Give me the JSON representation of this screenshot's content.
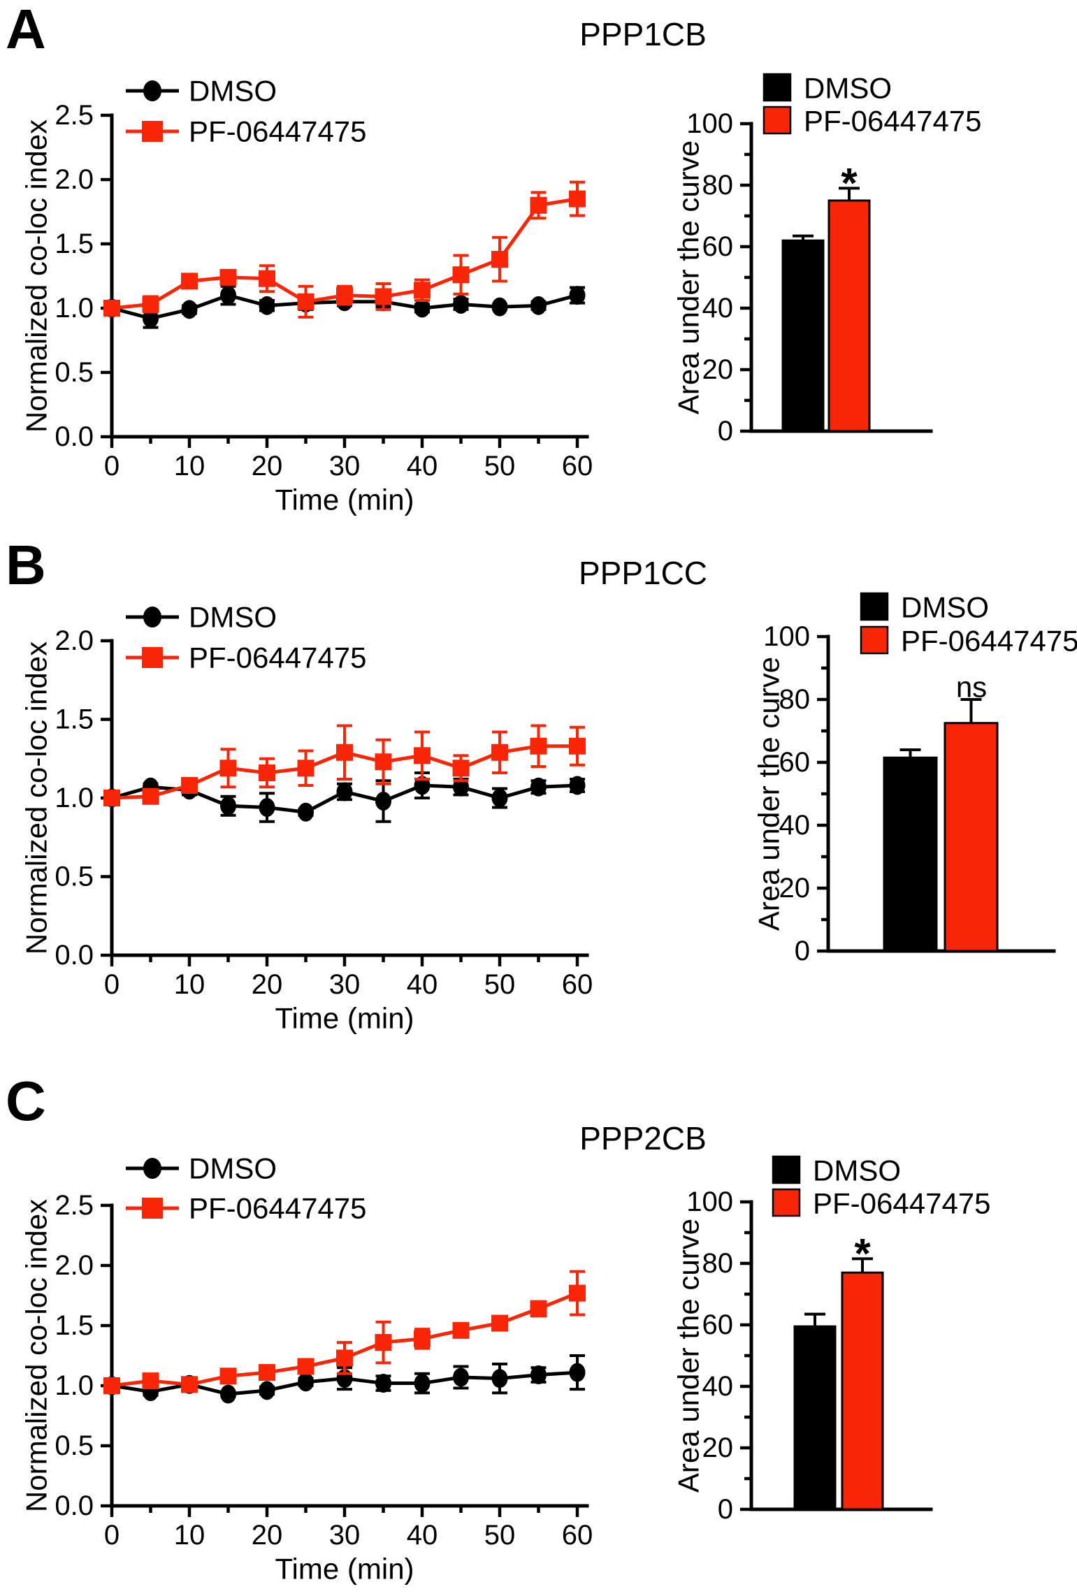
{
  "figure_background": "#FFFFFF",
  "colors": {
    "dmso": "#000000",
    "pf": "#F82506",
    "text": "#000000"
  },
  "chart_data": [
    {
      "panel": "A",
      "title": "PPP1CB",
      "line": {
        "type": "line",
        "xlabel": "Time (min)",
        "ylabel": "Normalized co-loc index",
        "x": [
          0,
          5,
          10,
          15,
          20,
          25,
          30,
          35,
          40,
          45,
          50,
          55,
          60
        ],
        "xticks": [
          0,
          10,
          20,
          30,
          40,
          50,
          60
        ],
        "ylim": [
          0,
          2.5
        ],
        "yticks": [
          0,
          0.5,
          1.0,
          1.5,
          2.0,
          2.5
        ],
        "grid": false,
        "legend_position": "top-left-inside",
        "series": [
          {
            "name": "DMSO",
            "color": "#000000",
            "marker": "circle",
            "values": [
              1.0,
              0.92,
              0.99,
              1.1,
              1.02,
              1.04,
              1.05,
              1.05,
              1.0,
              1.03,
              1.01,
              1.02,
              1.1
            ],
            "errors": [
              0.04,
              0.07,
              0.03,
              0.07,
              0.04,
              0.05,
              0.03,
              0.04,
              0.03,
              0.04,
              0.02,
              0.03,
              0.06
            ]
          },
          {
            "name": "PF-06447475",
            "color": "#F82506",
            "marker": "square",
            "values": [
              1.0,
              1.03,
              1.21,
              1.24,
              1.23,
              1.05,
              1.1,
              1.09,
              1.14,
              1.26,
              1.38,
              1.8,
              1.85
            ],
            "errors": [
              0.03,
              0.06,
              0.04,
              0.04,
              0.1,
              0.12,
              0.07,
              0.1,
              0.08,
              0.15,
              0.17,
              0.1,
              0.13
            ]
          }
        ]
      },
      "bar": {
        "type": "bar",
        "ylabel": "Area under the curve",
        "ylim": [
          0,
          100
        ],
        "yticks": [
          0,
          20,
          40,
          60,
          80,
          100
        ],
        "categories": [
          "DMSO",
          "PF-06447475"
        ],
        "values": [
          62,
          75
        ],
        "errors": [
          1.5,
          4
        ],
        "colors": [
          "#000000",
          "#F82506"
        ],
        "significance": "*",
        "significance_on": "PF-06447475"
      }
    },
    {
      "panel": "B",
      "title": "PPP1CC",
      "line": {
        "type": "line",
        "xlabel": "Time (min)",
        "ylabel": "Normalized co-loc index",
        "x": [
          0,
          5,
          10,
          15,
          20,
          25,
          30,
          35,
          40,
          45,
          50,
          55,
          60
        ],
        "xticks": [
          0,
          10,
          20,
          30,
          40,
          50,
          60
        ],
        "ylim": [
          0,
          2.0
        ],
        "yticks": [
          0,
          0.5,
          1.0,
          1.5,
          2.0
        ],
        "grid": false,
        "legend_position": "top-left-inside",
        "series": [
          {
            "name": "DMSO",
            "color": "#000000",
            "marker": "circle",
            "values": [
              1.0,
              1.07,
              1.05,
              0.95,
              0.94,
              0.91,
              1.04,
              0.98,
              1.08,
              1.07,
              1.0,
              1.07,
              1.08
            ],
            "errors": [
              0.02,
              0.02,
              0.03,
              0.06,
              0.09,
              0.02,
              0.05,
              0.13,
              0.08,
              0.05,
              0.06,
              0.04,
              0.04
            ]
          },
          {
            "name": "PF-06447475",
            "color": "#F82506",
            "marker": "square",
            "values": [
              1.0,
              1.01,
              1.08,
              1.19,
              1.16,
              1.19,
              1.29,
              1.23,
              1.27,
              1.19,
              1.29,
              1.33,
              1.33
            ],
            "errors": [
              0.02,
              0.03,
              0.02,
              0.12,
              0.09,
              0.11,
              0.17,
              0.14,
              0.15,
              0.08,
              0.13,
              0.13,
              0.12
            ]
          }
        ]
      },
      "bar": {
        "type": "bar",
        "ylabel": "Area under the curve",
        "ylim": [
          0,
          100
        ],
        "yticks": [
          0,
          20,
          40,
          60,
          80,
          100
        ],
        "categories": [
          "DMSO",
          "PF-06447475"
        ],
        "values": [
          61.5,
          72.5
        ],
        "errors": [
          2.5,
          7.5
        ],
        "colors": [
          "#000000",
          "#F82506"
        ],
        "significance": "ns",
        "significance_on": "PF-06447475"
      }
    },
    {
      "panel": "C",
      "title": "PPP2CB",
      "line": {
        "type": "line",
        "xlabel": "Time (min)",
        "ylabel": "Normalized co-loc index",
        "x": [
          0,
          5,
          10,
          15,
          20,
          25,
          30,
          35,
          40,
          45,
          50,
          55,
          60
        ],
        "xticks": [
          0,
          10,
          20,
          30,
          40,
          50,
          60
        ],
        "ylim": [
          0,
          2.5
        ],
        "yticks": [
          0,
          0.5,
          1.0,
          1.5,
          2.0,
          2.5
        ],
        "grid": false,
        "legend_position": "top-left-inside",
        "series": [
          {
            "name": "DMSO",
            "color": "#000000",
            "marker": "circle",
            "values": [
              1.0,
              0.95,
              1.01,
              0.93,
              0.96,
              1.03,
              1.06,
              1.02,
              1.02,
              1.07,
              1.06,
              1.09,
              1.11
            ],
            "errors": [
              0.02,
              0.03,
              0.02,
              0.02,
              0.03,
              0.03,
              0.09,
              0.06,
              0.08,
              0.09,
              0.12,
              0.06,
              0.14
            ]
          },
          {
            "name": "PF-06447475",
            "color": "#F82506",
            "marker": "square",
            "values": [
              1.0,
              1.04,
              1.01,
              1.08,
              1.11,
              1.16,
              1.23,
              1.36,
              1.39,
              1.46,
              1.52,
              1.64,
              1.77
            ],
            "errors": [
              0.02,
              0.03,
              0.03,
              0.03,
              0.03,
              0.04,
              0.13,
              0.17,
              0.08,
              0.05,
              0.04,
              0.06,
              0.18
            ]
          }
        ]
      },
      "bar": {
        "type": "bar",
        "ylabel": "Area under the curve",
        "ylim": [
          0,
          100
        ],
        "yticks": [
          0,
          20,
          40,
          60,
          80,
          100
        ],
        "categories": [
          "DMSO",
          "PF-06447475"
        ],
        "values": [
          59.5,
          77
        ],
        "errors": [
          4,
          4.5
        ],
        "colors": [
          "#000000",
          "#F82506"
        ],
        "significance": "*",
        "significance_on": "PF-06447475"
      }
    }
  ]
}
